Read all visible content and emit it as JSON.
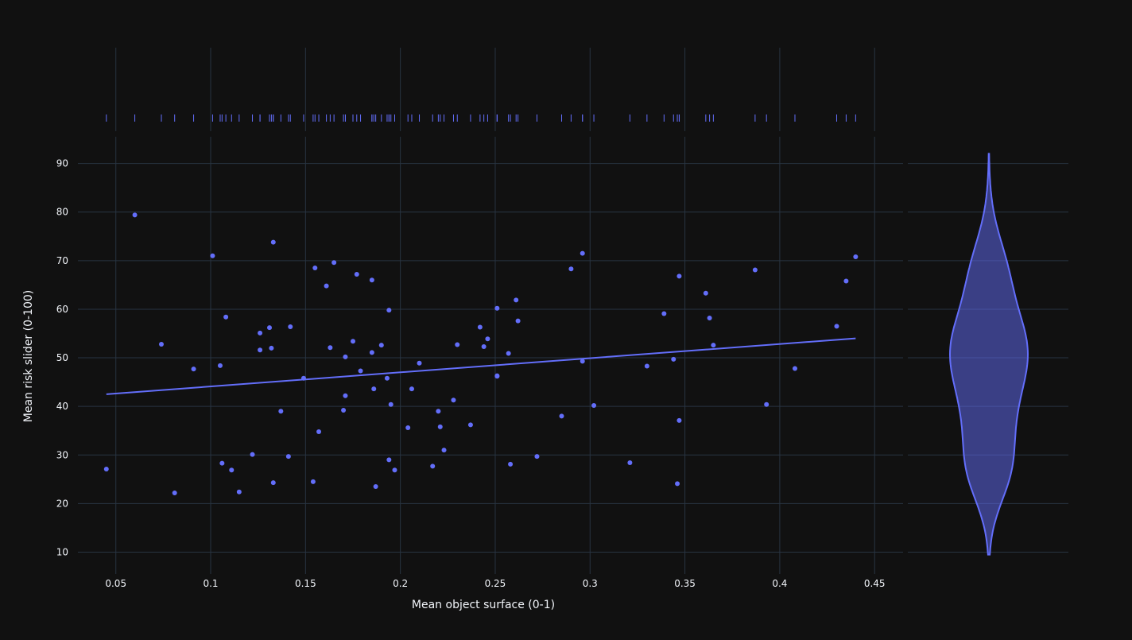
{
  "chart_data": {
    "type": "scatter",
    "xlabel": "Mean object surface (0-1)",
    "ylabel": "Mean risk slider (0-100)",
    "xlim": [
      0.03,
      0.465
    ],
    "ylim": [
      5.5,
      95.5
    ],
    "x_ticks": [
      "0.05",
      "0.1",
      "0.15",
      "0.2",
      "0.25",
      "0.3",
      "0.35",
      "0.4",
      "0.45"
    ],
    "y_ticks": [
      "10",
      "20",
      "30",
      "40",
      "50",
      "60",
      "70",
      "80",
      "90"
    ],
    "grid": true,
    "marker_color": "#636efa",
    "background": "#111111",
    "grid_color": "#283442",
    "marginal_x": "rug",
    "marginal_y": "violin",
    "trendline": {
      "type": "ols",
      "x": [
        0.045,
        0.44
      ],
      "y": [
        42.5,
        54.0
      ]
    },
    "violin": {
      "min": 9.5,
      "max": 92.0,
      "median": 48.5
    },
    "points": [
      [
        0.045,
        27.1
      ],
      [
        0.06,
        79.4
      ],
      [
        0.074,
        52.8
      ],
      [
        0.081,
        22.2
      ],
      [
        0.091,
        47.7
      ],
      [
        0.101,
        71.0
      ],
      [
        0.105,
        48.4
      ],
      [
        0.106,
        28.3
      ],
      [
        0.108,
        58.4
      ],
      [
        0.111,
        26.9
      ],
      [
        0.115,
        22.4
      ],
      [
        0.122,
        30.1
      ],
      [
        0.126,
        55.1
      ],
      [
        0.126,
        51.6
      ],
      [
        0.131,
        56.2
      ],
      [
        0.132,
        52.0
      ],
      [
        0.133,
        73.8
      ],
      [
        0.133,
        24.3
      ],
      [
        0.137,
        39.0
      ],
      [
        0.141,
        29.7
      ],
      [
        0.142,
        56.4
      ],
      [
        0.149,
        45.8
      ],
      [
        0.154,
        24.5
      ],
      [
        0.155,
        68.5
      ],
      [
        0.157,
        34.8
      ],
      [
        0.161,
        64.8
      ],
      [
        0.163,
        52.1
      ],
      [
        0.165,
        69.6
      ],
      [
        0.17,
        39.2
      ],
      [
        0.171,
        42.2
      ],
      [
        0.171,
        50.2
      ],
      [
        0.175,
        53.4
      ],
      [
        0.177,
        67.2
      ],
      [
        0.179,
        47.3
      ],
      [
        0.185,
        66.0
      ],
      [
        0.185,
        51.1
      ],
      [
        0.186,
        43.6
      ],
      [
        0.187,
        23.5
      ],
      [
        0.19,
        52.6
      ],
      [
        0.193,
        45.8
      ],
      [
        0.194,
        59.8
      ],
      [
        0.194,
        29.0
      ],
      [
        0.195,
        40.4
      ],
      [
        0.197,
        26.9
      ],
      [
        0.204,
        35.6
      ],
      [
        0.206,
        43.6
      ],
      [
        0.21,
        48.9
      ],
      [
        0.217,
        27.7
      ],
      [
        0.22,
        39.0
      ],
      [
        0.221,
        35.8
      ],
      [
        0.223,
        31.0
      ],
      [
        0.228,
        41.3
      ],
      [
        0.23,
        52.7
      ],
      [
        0.237,
        36.2
      ],
      [
        0.242,
        56.3
      ],
      [
        0.244,
        52.3
      ],
      [
        0.246,
        53.9
      ],
      [
        0.251,
        60.2
      ],
      [
        0.251,
        46.2
      ],
      [
        0.251,
        46.3
      ],
      [
        0.257,
        50.9
      ],
      [
        0.258,
        28.1
      ],
      [
        0.261,
        61.9
      ],
      [
        0.262,
        57.6
      ],
      [
        0.272,
        29.7
      ],
      [
        0.285,
        38.0
      ],
      [
        0.29,
        68.3
      ],
      [
        0.296,
        71.5
      ],
      [
        0.296,
        49.3
      ],
      [
        0.302,
        40.2
      ],
      [
        0.321,
        28.4
      ],
      [
        0.33,
        48.3
      ],
      [
        0.339,
        59.1
      ],
      [
        0.344,
        49.7
      ],
      [
        0.346,
        24.1
      ],
      [
        0.347,
        66.8
      ],
      [
        0.347,
        37.1
      ],
      [
        0.361,
        63.3
      ],
      [
        0.363,
        58.2
      ],
      [
        0.365,
        52.6
      ],
      [
        0.387,
        68.1
      ],
      [
        0.393,
        40.4
      ],
      [
        0.408,
        47.8
      ],
      [
        0.43,
        56.5
      ],
      [
        0.435,
        65.8
      ],
      [
        0.44,
        70.8
      ]
    ]
  }
}
